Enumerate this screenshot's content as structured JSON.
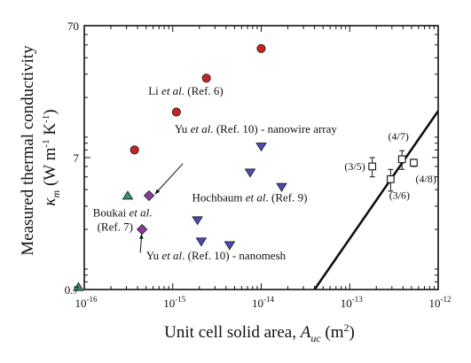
{
  "colors": {
    "li": "#cc2222",
    "hochbaum": "#4a4ab8",
    "yu": "#8a3b9e",
    "boukai": "#2e9c62",
    "this_work": "#ffffff",
    "axis": "#111111"
  },
  "chart_data": {
    "type": "scatter",
    "x_scale": "log",
    "y_scale": "log",
    "xlim": [
      1e-16,
      1e-12
    ],
    "ylim": [
      0.7,
      70
    ],
    "grid": false,
    "xlabel": {
      "main": "Unit cell solid area, ",
      "var": "A",
      "sub": "uc",
      "unit_open": " (m",
      "unit_exp": "2",
      "unit_close": ")"
    },
    "ylabel": {
      "line1": "Measured thermal conductivity",
      "var": "κ",
      "sub": "m",
      "unit_open": " (W m",
      "exp1": "-1",
      "mid": " K",
      "exp2": "-1",
      "unit_close": ")"
    },
    "x_tick_labels": [
      {
        "value": 1e-16,
        "base": "10",
        "exp": "-16"
      },
      {
        "value": 1e-15,
        "base": "10",
        "exp": "-15"
      },
      {
        "value": 1e-14,
        "base": "10",
        "exp": "-14"
      },
      {
        "value": 1e-13,
        "base": "10",
        "exp": "-13"
      },
      {
        "value": 1e-12,
        "base": "10",
        "exp": "-12"
      }
    ],
    "y_tick_labels": [
      {
        "value": 0.7,
        "label": "0.7"
      },
      {
        "value": 7,
        "label": "7"
      },
      {
        "value": 70,
        "label": "70"
      }
    ],
    "series": [
      {
        "id": "li",
        "marker": "circle",
        "points": [
          {
            "x": 3.7e-16,
            "y": 8.0
          },
          {
            "x": 1.1e-15,
            "y": 15.5
          },
          {
            "x": 2.4e-15,
            "y": 28.0
          },
          {
            "x": 1e-14,
            "y": 47.0
          }
        ]
      },
      {
        "id": "hochbaum",
        "marker": "triangle-down",
        "points": [
          {
            "x": 1e-14,
            "y": 8.5
          },
          {
            "x": 7.5e-15,
            "y": 5.4
          },
          {
            "x": 1.7e-14,
            "y": 4.2
          },
          {
            "x": 1.9e-15,
            "y": 2.35
          },
          {
            "x": 2.1e-15,
            "y": 1.62
          },
          {
            "x": 4.4e-15,
            "y": 1.52
          }
        ]
      },
      {
        "id": "yu",
        "marker": "diamond",
        "points": [
          {
            "x": 5.4e-16,
            "y": 3.6
          },
          {
            "x": 4.5e-16,
            "y": 2.0
          }
        ]
      },
      {
        "id": "boukai",
        "marker": "triangle-up",
        "points": [
          {
            "x": 3.1e-16,
            "y": 3.6
          },
          {
            "x": 8.6e-17,
            "y": 0.73
          }
        ]
      },
      {
        "id": "this_work",
        "marker": "square",
        "points": [
          {
            "x": 1.8e-13,
            "y": 6.0,
            "yerr": 1.0,
            "label": "(3/5)"
          },
          {
            "x": 2.9e-13,
            "y": 4.8,
            "yerr": 0.9,
            "label": "(3/6)"
          },
          {
            "x": 3.9e-13,
            "y": 6.8,
            "yerr": 1.1,
            "label": "(4/7)"
          },
          {
            "x": 5.3e-13,
            "y": 6.4,
            "yerr": 0.4,
            "label": "(4/8)"
          }
        ]
      }
    ],
    "line": {
      "points": [
        {
          "x": 4e-14,
          "y": 0.7
        },
        {
          "x": 1e-12,
          "y": 15.8
        }
      ]
    },
    "annotations": [
      {
        "id": "li",
        "pre": "Li ",
        "it": "et al",
        "post": ". (Ref. 6)",
        "x": 5.3e-16,
        "y": 21
      },
      {
        "id": "yu-array",
        "pre": "Yu ",
        "it": "et al",
        "post": ". (Ref. 10) - nanowire array",
        "x": 1.05e-15,
        "y": 10.8
      },
      {
        "id": "hochbaum",
        "pre": "Hochbaum ",
        "it": "et al",
        "post": ". (Ref. 9)",
        "x": 1.65e-15,
        "y": 3.25
      },
      {
        "id": "boukai-1",
        "pre": "Boukai ",
        "it": "et al",
        "post": ".",
        "x": 1.25e-16,
        "y": 2.5
      },
      {
        "id": "boukai-2",
        "pre": "",
        "it": "",
        "post": "(Ref. 7)",
        "x": 1.4e-16,
        "y": 1.95
      },
      {
        "id": "yu-mesh",
        "pre": "Yu ",
        "it": "et al",
        "post": ". (Ref. 10) - nanomesh",
        "x": 5e-16,
        "y": 1.18
      }
    ],
    "arrows": [
      {
        "id": "yu-array",
        "from": {
          "x": 1.3e-15,
          "y": 6.3
        },
        "to": {
          "x": 6.3e-16,
          "y": 3.7
        }
      },
      {
        "id": "yu-mesh",
        "from": {
          "x": 4.3e-16,
          "y": 1.33
        },
        "to": {
          "x": 4.45e-16,
          "y": 1.85
        }
      }
    ]
  }
}
